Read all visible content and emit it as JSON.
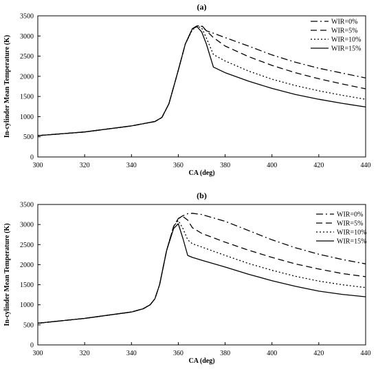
{
  "chart_data": [
    {
      "type": "line",
      "title": "(a)",
      "xlabel": "CA (deg)",
      "ylabel": "In-cylinder Mean Temperature (K)",
      "xlim": [
        300,
        440
      ],
      "ylim": [
        0,
        3500
      ],
      "x_ticks": [
        300,
        320,
        340,
        360,
        380,
        400,
        420,
        440
      ],
      "y_ticks": [
        0,
        500,
        1000,
        1500,
        2000,
        2500,
        3000,
        3500
      ],
      "grid": false,
      "legend_position": "top-right",
      "series": [
        {
          "name": "WIR=0%",
          "style": "dashdot",
          "x": [
            300,
            320,
            340,
            350,
            353,
            356,
            360,
            363,
            366,
            368,
            370,
            372,
            375,
            380,
            390,
            400,
            410,
            420,
            430,
            440
          ],
          "y": [
            530,
            620,
            770,
            880,
            980,
            1320,
            2150,
            2800,
            3180,
            3250,
            3240,
            3130,
            3070,
            2960,
            2750,
            2530,
            2350,
            2200,
            2080,
            1960
          ]
        },
        {
          "name": "WIR=5%",
          "style": "dashed",
          "x": [
            300,
            320,
            340,
            350,
            353,
            356,
            360,
            363,
            366,
            368,
            370,
            372,
            375,
            380,
            390,
            400,
            410,
            420,
            430,
            440
          ],
          "y": [
            530,
            620,
            770,
            880,
            980,
            1320,
            2150,
            2800,
            3180,
            3250,
            3260,
            3130,
            2960,
            2750,
            2490,
            2270,
            2090,
            1940,
            1810,
            1690
          ]
        },
        {
          "name": "WIR=10%",
          "style": "dotted",
          "x": [
            300,
            320,
            340,
            350,
            353,
            356,
            360,
            363,
            366,
            368,
            370,
            372,
            375,
            380,
            390,
            400,
            410,
            420,
            430,
            440
          ],
          "y": [
            530,
            620,
            770,
            880,
            980,
            1320,
            2150,
            2800,
            3150,
            3240,
            3200,
            2950,
            2540,
            2380,
            2130,
            1930,
            1770,
            1640,
            1530,
            1430
          ]
        },
        {
          "name": "WIR=15%",
          "style": "solid",
          "x": [
            300,
            320,
            340,
            350,
            353,
            356,
            360,
            363,
            366,
            368,
            370,
            372,
            375,
            380,
            390,
            400,
            410,
            420,
            430,
            440
          ],
          "y": [
            530,
            620,
            770,
            880,
            980,
            1320,
            2150,
            2800,
            3180,
            3230,
            3100,
            2800,
            2230,
            2090,
            1880,
            1700,
            1550,
            1430,
            1330,
            1240
          ]
        }
      ]
    },
    {
      "type": "line",
      "title": "(b)",
      "xlabel": "CA (deg)",
      "ylabel": "In-cylinder Mean Temperature (K)",
      "xlim": [
        300,
        440
      ],
      "ylim": [
        0,
        3500
      ],
      "x_ticks": [
        300,
        320,
        340,
        360,
        380,
        400,
        420,
        440
      ],
      "y_ticks": [
        0,
        500,
        1000,
        1500,
        2000,
        2500,
        3000,
        3500
      ],
      "grid": false,
      "legend_position": "top-right",
      "series": [
        {
          "name": "WIR=0%",
          "style": "dashdot",
          "x": [
            300,
            320,
            340,
            345,
            348,
            350,
            352,
            355,
            358,
            360,
            362,
            364,
            366,
            370,
            380,
            390,
            400,
            410,
            420,
            430,
            440
          ],
          "y": [
            540,
            660,
            820,
            900,
            1000,
            1150,
            1500,
            2350,
            2950,
            3150,
            3220,
            3270,
            3280,
            3250,
            3080,
            2850,
            2620,
            2420,
            2260,
            2130,
            2020
          ]
        },
        {
          "name": "WIR=5%",
          "style": "dashed",
          "x": [
            300,
            320,
            340,
            345,
            348,
            350,
            352,
            355,
            358,
            360,
            362,
            364,
            366,
            370,
            380,
            390,
            400,
            410,
            420,
            430,
            440
          ],
          "y": [
            540,
            660,
            820,
            900,
            1000,
            1150,
            1500,
            2350,
            2950,
            3150,
            3200,
            3110,
            2920,
            2780,
            2560,
            2360,
            2180,
            2020,
            1890,
            1780,
            1700
          ]
        },
        {
          "name": "WIR=10%",
          "style": "dotted",
          "x": [
            300,
            320,
            340,
            345,
            348,
            350,
            352,
            355,
            358,
            360,
            362,
            364,
            366,
            370,
            380,
            390,
            400,
            410,
            420,
            430,
            440
          ],
          "y": [
            540,
            660,
            820,
            900,
            1000,
            1150,
            1500,
            2350,
            2950,
            3100,
            2900,
            2620,
            2520,
            2440,
            2230,
            2030,
            1860,
            1710,
            1590,
            1500,
            1430
          ]
        },
        {
          "name": "WIR=15%",
          "style": "solid",
          "x": [
            300,
            320,
            340,
            345,
            348,
            350,
            352,
            355,
            358,
            360,
            362,
            364,
            366,
            370,
            380,
            390,
            400,
            410,
            420,
            430,
            440
          ],
          "y": [
            540,
            660,
            820,
            900,
            1000,
            1150,
            1500,
            2350,
            2900,
            3020,
            2650,
            2230,
            2180,
            2110,
            1940,
            1760,
            1600,
            1460,
            1340,
            1260,
            1200
          ]
        }
      ]
    }
  ]
}
